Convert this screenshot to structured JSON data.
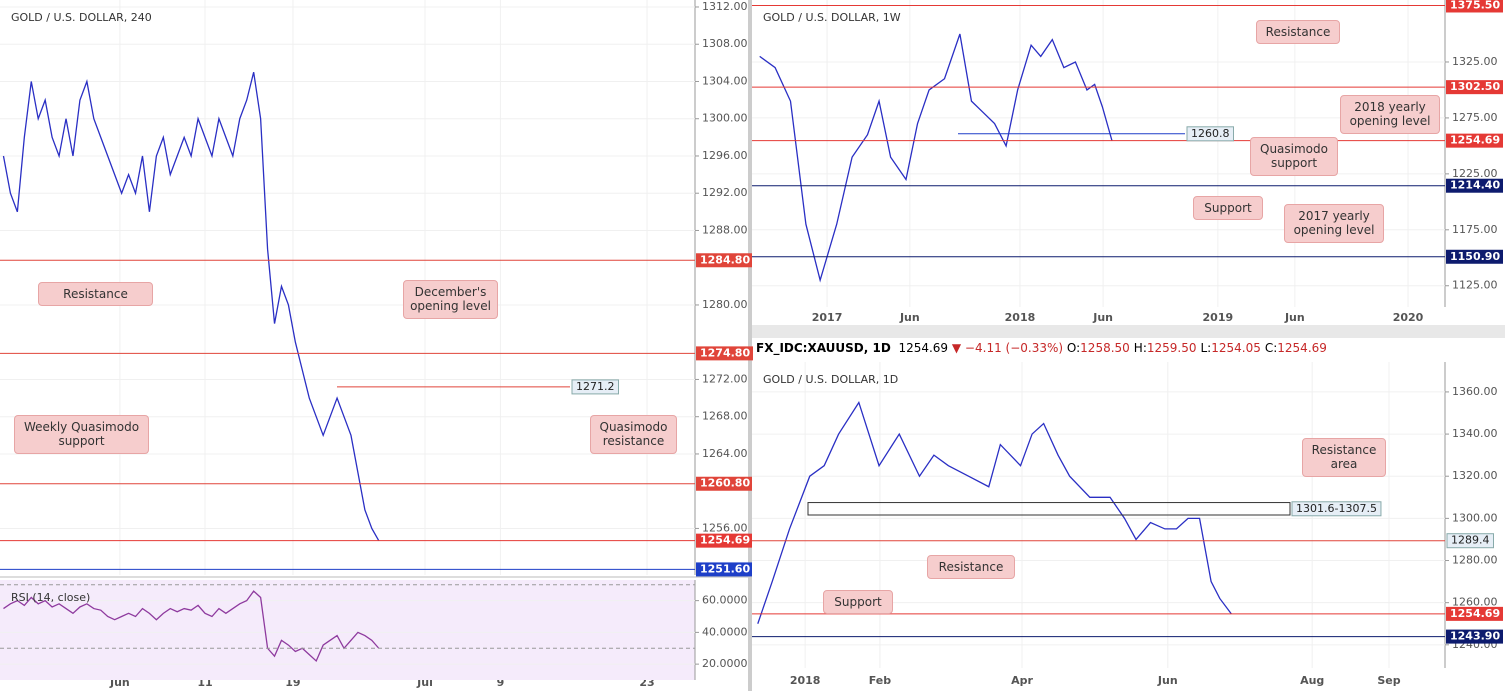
{
  "chart_data": [
    {
      "type": "line",
      "title": "GOLD / U.S. DOLLAR, 240",
      "color": "#2a2fc4",
      "grid": true,
      "xlim": [
        0,
        200
      ],
      "ylim": [
        1251,
        1312.75
      ],
      "x": [
        1,
        3,
        5,
        7,
        9,
        11,
        13,
        15,
        17,
        19,
        21,
        23,
        25,
        27,
        29,
        31,
        33,
        35,
        37,
        39,
        41,
        43,
        45,
        47,
        49,
        51,
        53,
        55,
        57,
        59,
        61,
        63,
        65,
        67,
        69,
        71,
        73,
        75,
        77,
        79,
        81,
        83,
        85,
        87,
        89,
        91,
        93,
        95,
        97,
        99,
        101,
        103,
        105,
        107,
        109
      ],
      "values": [
        1296,
        1292,
        1290,
        1298,
        1304,
        1300,
        1302,
        1298,
        1296,
        1300,
        1296,
        1302,
        1304,
        1300,
        1298,
        1296,
        1294,
        1292,
        1294,
        1292,
        1296,
        1290,
        1296,
        1298,
        1294,
        1296,
        1298,
        1296,
        1300,
        1298,
        1296,
        1300,
        1298,
        1296,
        1300,
        1302,
        1305,
        1300,
        1286,
        1278,
        1282,
        1280,
        1276,
        1273,
        1270,
        1268,
        1266,
        1268,
        1270,
        1268,
        1266,
        1262,
        1258,
        1256,
        1254.69
      ],
      "yticks": [
        {
          "value": 1312,
          "label": "1312.00"
        },
        {
          "value": 1308,
          "label": "1308.00"
        },
        {
          "value": 1304,
          "label": "1304.00"
        },
        {
          "value": 1300,
          "label": "1300.00"
        },
        {
          "value": 1296,
          "label": "1296.00"
        },
        {
          "value": 1292,
          "label": "1292.00"
        },
        {
          "value": 1288,
          "label": "1288.00"
        },
        {
          "value": 1280,
          "label": "1280.00"
        },
        {
          "value": 1272,
          "label": "1272.00"
        },
        {
          "value": 1268,
          "label": "1268.00"
        },
        {
          "value": 1264,
          "label": "1264.00"
        },
        {
          "value": 1256,
          "label": "1256.00"
        }
      ],
      "xticks": [
        {
          "value": 34.5,
          "label": "Jun"
        },
        {
          "value": 59,
          "label": "11"
        },
        {
          "value": 84.3,
          "label": "19"
        },
        {
          "value": 122.3,
          "label": "Jul"
        },
        {
          "value": 144,
          "label": "9"
        },
        {
          "value": 186.2,
          "label": "23"
        }
      ],
      "levels": [
        {
          "value": 1284.8,
          "label": "1284.80",
          "color": "#e0453a"
        },
        {
          "value": 1274.8,
          "label": "1274.80",
          "color": "#e0453a"
        },
        {
          "value": 1260.8,
          "label": "1260.80",
          "color": "#e0453a"
        },
        {
          "value": 1251.6,
          "label": "1251.60",
          "color": "#1e3fc8"
        },
        {
          "value": 1254.69,
          "label": "1254.69",
          "color": "#e53935"
        },
        {
          "value": 1271.2,
          "color": "#e0453a",
          "inline": true
        }
      ],
      "annotations": [
        "Resistance",
        "December's opening level",
        "Weekly Quasimodo support",
        "Quasimodo resistance"
      ]
    },
    {
      "type": "line",
      "title": "RSI (14, close)",
      "color": "#8e3a9e",
      "grid": true,
      "xlim": [
        0,
        200
      ],
      "ylim": [
        10,
        73
      ],
      "x": [
        1,
        3,
        5,
        7,
        9,
        11,
        13,
        15,
        17,
        19,
        21,
        23,
        25,
        27,
        29,
        31,
        33,
        35,
        37,
        39,
        41,
        43,
        45,
        47,
        49,
        51,
        53,
        55,
        57,
        59,
        61,
        63,
        65,
        67,
        69,
        71,
        73,
        75,
        77,
        79,
        81,
        83,
        85,
        87,
        89,
        91,
        93,
        95,
        97,
        99,
        101,
        103,
        105,
        107,
        109
      ],
      "values": [
        55,
        58,
        60,
        57,
        62,
        58,
        60,
        56,
        58,
        55,
        52,
        56,
        58,
        55,
        54,
        50,
        48,
        50,
        52,
        50,
        55,
        52,
        48,
        52,
        55,
        53,
        55,
        54,
        57,
        52,
        50,
        55,
        52,
        55,
        58,
        60,
        66,
        62,
        30,
        25,
        35,
        32,
        28,
        30,
        26,
        22,
        32,
        35,
        38,
        30,
        35,
        40,
        38,
        35,
        30
      ],
      "yticks": [
        {
          "value": 60,
          "label": "60.0000"
        },
        {
          "value": 40,
          "label": "40.0000"
        },
        {
          "value": 20,
          "label": "20.0000"
        }
      ],
      "levels": [
        {
          "value": 70,
          "color": "#999999",
          "dashed": true
        },
        {
          "value": 30,
          "color": "#999999",
          "dashed": true
        }
      ],
      "annotations": []
    },
    {
      "type": "line",
      "title": "GOLD / U.S. DOLLAR, 1W",
      "color": "#2a2fc4",
      "grid": true,
      "xlim": [
        0,
        180
      ],
      "ylim": [
        1106,
        1380.4
      ],
      "x": [
        2,
        6,
        10,
        14,
        17.7,
        22,
        26,
        30,
        33,
        36,
        40,
        43,
        46,
        50,
        54,
        57,
        60,
        63,
        66,
        69,
        72.5,
        75,
        78,
        81,
        84,
        87,
        89,
        91,
        93.5
      ],
      "values": [
        1330,
        1320,
        1290,
        1180,
        1130,
        1180,
        1240,
        1260,
        1290,
        1240,
        1220,
        1270,
        1300,
        1310,
        1350,
        1290,
        1280,
        1270,
        1250,
        1300,
        1340,
        1330,
        1345,
        1320,
        1325,
        1300,
        1305,
        1285,
        1254.69
      ],
      "yticks": [
        {
          "value": 1325,
          "label": "1325.00"
        },
        {
          "value": 1275,
          "label": "1275.00"
        },
        {
          "value": 1225,
          "label": "1225.00"
        },
        {
          "value": 1175,
          "label": "1175.00"
        },
        {
          "value": 1125,
          "label": "1125.00"
        }
      ],
      "xticks": [
        {
          "value": 19.5,
          "label": "2017"
        },
        {
          "value": 41,
          "label": "Jun"
        },
        {
          "value": 69.6,
          "label": "2018"
        },
        {
          "value": 91.2,
          "label": "Jun"
        },
        {
          "value": 121,
          "label": "2019"
        },
        {
          "value": 141,
          "label": "Jun"
        },
        {
          "value": 170.4,
          "label": "2020"
        }
      ],
      "levels": [
        {
          "value": 1375.5,
          "label": "1375.50",
          "color": "#e53935"
        },
        {
          "value": 1302.5,
          "label": "1302.50",
          "color": "#e53935"
        },
        {
          "value": 1254.69,
          "label": "1254.69",
          "color": "#e53935"
        },
        {
          "value": 1214.4,
          "label": "1214.40",
          "color": "#0d1b6e"
        },
        {
          "value": 1150.9,
          "label": "1150.90",
          "color": "#0d1b6e"
        },
        {
          "value": 1260.8,
          "color": "#1e3fc8",
          "inline": true
        }
      ],
      "annotations": [
        "Resistance",
        "2018 yearly opening level",
        "Quasimodo support",
        "Support",
        "2017 yearly opening level"
      ]
    },
    {
      "type": "line",
      "title": "GOLD / U.S. DOLLAR, 1D",
      "color": "#2a2fc4",
      "grid": true,
      "header": {
        "symbol": "FX_IDC:XAUUSD, 1D",
        "last": "1254.69",
        "change": "▼ −4.11 (−0.33%)",
        "quote": [
          {
            "k": "O:",
            "v": "1258.50"
          },
          {
            "k": "H:",
            "v": "1259.50"
          },
          {
            "k": "L:",
            "v": "1254.05"
          },
          {
            "k": "C:",
            "v": "1254.69"
          }
        ]
      },
      "xlim": [
        0,
        240
      ],
      "ylim": [
        1229,
        1374.2
      ],
      "x": [
        2,
        7,
        13,
        20,
        25,
        30,
        37,
        44,
        51,
        58,
        63,
        68,
        75,
        82,
        86,
        93,
        97,
        101,
        106,
        110,
        117,
        124,
        129,
        133,
        138,
        143,
        147,
        151,
        155,
        159,
        162,
        166
      ],
      "values": [
        1250,
        1270,
        1295,
        1320,
        1325,
        1340,
        1355,
        1325,
        1340,
        1320,
        1330,
        1325,
        1320,
        1315,
        1335,
        1325,
        1340,
        1345,
        1330,
        1320,
        1310,
        1310,
        1300,
        1290,
        1298,
        1295,
        1295,
        1300,
        1300,
        1270,
        1262,
        1254.69
      ],
      "yticks": [
        {
          "value": 1360,
          "label": "1360.00"
        },
        {
          "value": 1340,
          "label": "1340.00"
        },
        {
          "value": 1320,
          "label": "1320.00"
        },
        {
          "value": 1300,
          "label": "1300.00"
        },
        {
          "value": 1280,
          "label": "1280.00"
        },
        {
          "value": 1260,
          "label": "1260.00"
        },
        {
          "value": 1240,
          "label": "1240.00"
        }
      ],
      "xticks": [
        {
          "value": 18.4,
          "label": "2018"
        },
        {
          "value": 44.3,
          "label": "Feb"
        },
        {
          "value": 93.5,
          "label": "Apr"
        },
        {
          "value": 144,
          "label": "Jun"
        },
        {
          "value": 194,
          "label": "Aug"
        },
        {
          "value": 220.6,
          "label": "Sep"
        }
      ],
      "levels": [
        {
          "range": [
            1301.6,
            1307.5
          ],
          "label": "1301.6-1307.5",
          "color": "#333333",
          "inline": true
        },
        {
          "value": 1289.4,
          "color": "#e0453a",
          "inline": true
        },
        {
          "value": 1254.69,
          "label": "1254.69",
          "color": "#e53935"
        },
        {
          "value": 1243.9,
          "label": "1243.90",
          "color": "#0d1b6e"
        }
      ],
      "annotations": [
        "Resistance area",
        "Resistance",
        "Support"
      ]
    }
  ]
}
